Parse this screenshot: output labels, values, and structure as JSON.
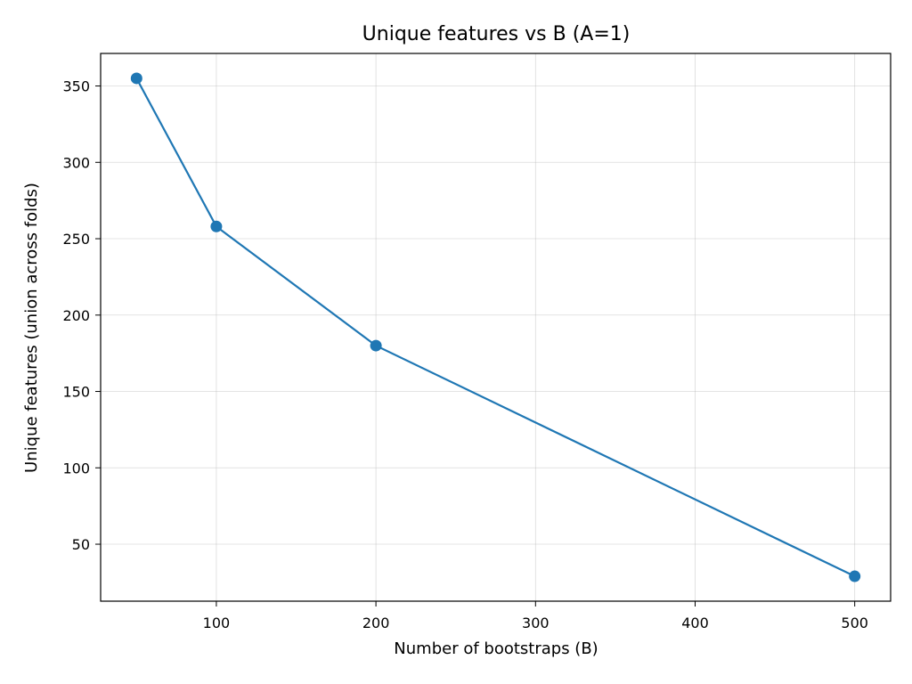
{
  "chart_data": {
    "type": "line",
    "title": "Unique features vs B (A=1)",
    "xlabel": "Number of bootstraps (B)",
    "ylabel": "Unique features (union across folds)",
    "x": [
      50,
      100,
      200,
      500
    ],
    "series": [
      {
        "values": [
          355,
          258,
          180,
          29
        ],
        "color": "#1f77b4",
        "marker": "circle"
      }
    ],
    "xlim": [
      27.5,
      522.5
    ],
    "ylim": [
      12.7,
      371.3
    ],
    "xticks": [
      100,
      200,
      300,
      400,
      500
    ],
    "yticks": [
      50,
      100,
      150,
      200,
      250,
      300,
      350
    ],
    "grid": true,
    "legend": "none"
  }
}
